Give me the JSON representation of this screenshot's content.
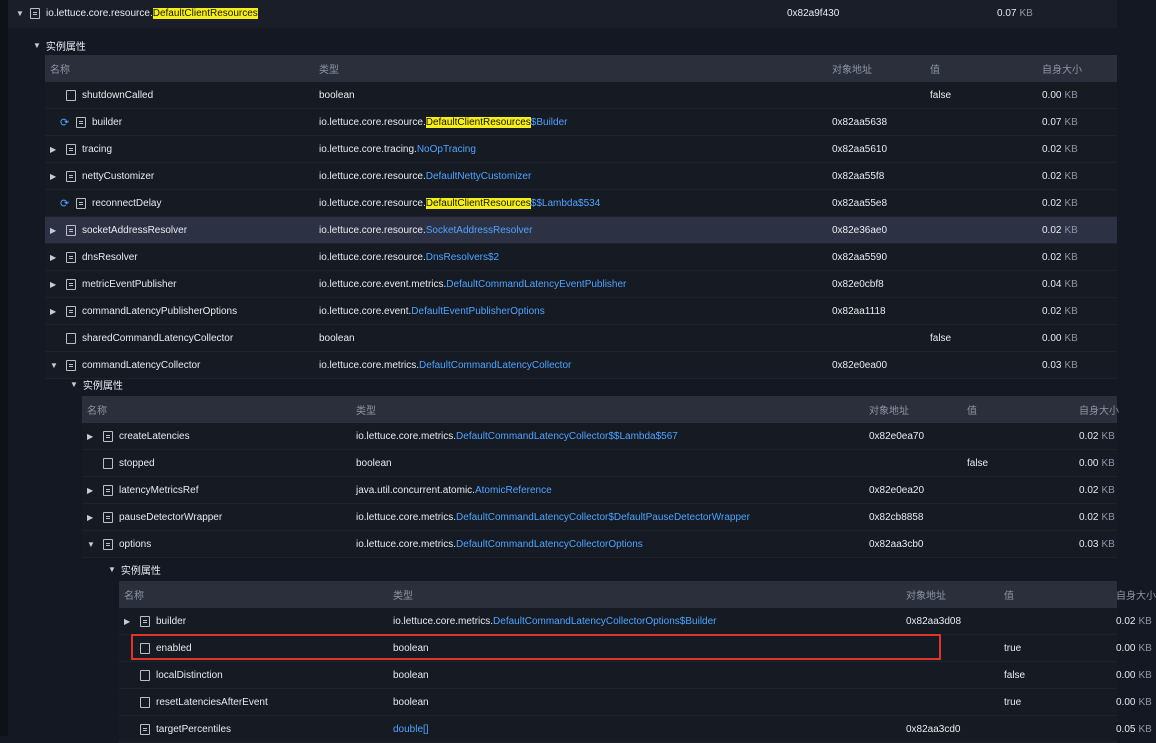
{
  "root": {
    "pkg": "io.lettuce.core.resource.",
    "cls": "DefaultClientResources",
    "addr": "0x82a9f430",
    "size": "0.07",
    "unit": "KB"
  },
  "headers": {
    "name": "名称",
    "type": "类型",
    "addr": "对象地址",
    "value": "值",
    "size": "自身大小"
  },
  "section_label": "实例属性",
  "level1": [
    {
      "name": "shutdownCalled",
      "kind": "prim",
      "exp": "",
      "pkg": "boolean",
      "cls": "",
      "hl": "",
      "suffix": "",
      "addr": "",
      "value": "false",
      "size": "0.00",
      "unit": "KB"
    },
    {
      "name": "builder",
      "kind": "cyc",
      "exp": "",
      "pkg": "io.lettuce.core.resource.",
      "cls": "",
      "hl": "DefaultClientResources",
      "suffix": "$Builder",
      "addr": "0x82aa5638",
      "value": "",
      "size": "0.07",
      "unit": "KB"
    },
    {
      "name": "tracing",
      "kind": "obj",
      "exp": "▶",
      "pkg": "io.lettuce.core.tracing.",
      "cls": "NoOpTracing",
      "hl": "",
      "suffix": "",
      "addr": "0x82aa5610",
      "value": "",
      "size": "0.02",
      "unit": "KB"
    },
    {
      "name": "nettyCustomizer",
      "kind": "obj",
      "exp": "▶",
      "pkg": "io.lettuce.core.resource.",
      "cls": "DefaultNettyCustomizer",
      "hl": "",
      "suffix": "",
      "addr": "0x82aa55f8",
      "value": "",
      "size": "0.02",
      "unit": "KB"
    },
    {
      "name": "reconnectDelay",
      "kind": "cyc",
      "exp": "",
      "pkg": "io.lettuce.core.resource.",
      "cls": "",
      "hl": "DefaultClientResources",
      "suffix": "$$Lambda$534",
      "addr": "0x82aa55e8",
      "value": "",
      "size": "0.02",
      "unit": "KB"
    },
    {
      "name": "socketAddressResolver",
      "kind": "obj",
      "exp": "▶",
      "pkg": "io.lettuce.core.resource.",
      "cls": "SocketAddressResolver",
      "hl": "",
      "suffix": "",
      "addr": "0x82e36ae0",
      "value": "",
      "size": "0.02",
      "unit": "KB",
      "selected": true
    },
    {
      "name": "dnsResolver",
      "kind": "obj",
      "exp": "▶",
      "pkg": "io.lettuce.core.resource.",
      "cls": "DnsResolvers$2",
      "hl": "",
      "suffix": "",
      "addr": "0x82aa5590",
      "value": "",
      "size": "0.02",
      "unit": "KB"
    },
    {
      "name": "metricEventPublisher",
      "kind": "obj",
      "exp": "▶",
      "pkg": "io.lettuce.core.event.metrics.",
      "cls": "DefaultCommandLatencyEventPublisher",
      "hl": "",
      "suffix": "",
      "addr": "0x82e0cbf8",
      "value": "",
      "size": "0.04",
      "unit": "KB"
    },
    {
      "name": "commandLatencyPublisherOptions",
      "kind": "obj",
      "exp": "▶",
      "pkg": "io.lettuce.core.event.",
      "cls": "DefaultEventPublisherOptions",
      "hl": "",
      "suffix": "",
      "addr": "0x82aa1118",
      "value": "",
      "size": "0.02",
      "unit": "KB"
    },
    {
      "name": "sharedCommandLatencyCollector",
      "kind": "prim",
      "exp": "",
      "pkg": "boolean",
      "cls": "",
      "hl": "",
      "suffix": "",
      "addr": "",
      "value": "false",
      "size": "0.00",
      "unit": "KB"
    },
    {
      "name": "commandLatencyCollector",
      "kind": "obj",
      "exp": "▼",
      "pkg": "io.lettuce.core.metrics.",
      "cls": "DefaultCommandLatencyCollector",
      "hl": "",
      "suffix": "",
      "addr": "0x82e0ea00",
      "value": "",
      "size": "0.03",
      "unit": "KB"
    }
  ],
  "level2": [
    {
      "name": "createLatencies",
      "kind": "obj",
      "exp": "▶",
      "pkg": "io.lettuce.core.metrics.",
      "cls": "DefaultCommandLatencyCollector$$Lambda$567",
      "hl": "",
      "suffix": "",
      "addr": "0x82e0ea70",
      "value": "",
      "size": "0.02",
      "unit": "KB"
    },
    {
      "name": "stopped",
      "kind": "prim",
      "exp": "",
      "pkg": "boolean",
      "cls": "",
      "hl": "",
      "suffix": "",
      "addr": "",
      "value": "false",
      "size": "0.00",
      "unit": "KB"
    },
    {
      "name": "latencyMetricsRef",
      "kind": "obj",
      "exp": "▶",
      "pkg": "java.util.concurrent.atomic.",
      "cls": "AtomicReference",
      "hl": "",
      "suffix": "",
      "addr": "0x82e0ea20",
      "value": "",
      "size": "0.02",
      "unit": "KB"
    },
    {
      "name": "pauseDetectorWrapper",
      "kind": "obj",
      "exp": "▶",
      "pkg": "io.lettuce.core.metrics.",
      "cls": "DefaultCommandLatencyCollector$DefaultPauseDetectorWrapper",
      "hl": "",
      "suffix": "",
      "addr": "0x82cb8858",
      "value": "",
      "size": "0.02",
      "unit": "KB"
    },
    {
      "name": "options",
      "kind": "obj",
      "exp": "▼",
      "pkg": "io.lettuce.core.metrics.",
      "cls": "DefaultCommandLatencyCollectorOptions",
      "hl": "",
      "suffix": "",
      "addr": "0x82aa3cb0",
      "value": "",
      "size": "0.03",
      "unit": "KB"
    }
  ],
  "level3": [
    {
      "name": "builder",
      "kind": "obj",
      "exp": "▶",
      "pkg": "io.lettuce.core.metrics.",
      "cls": "DefaultCommandLatencyCollectorOptions$Builder",
      "hl": "",
      "suffix": "",
      "addr": "0x82aa3d08",
      "value": "",
      "size": "0.02",
      "unit": "KB"
    },
    {
      "name": "enabled",
      "kind": "prim",
      "exp": "",
      "pkg": "boolean",
      "cls": "",
      "hl": "",
      "suffix": "",
      "addr": "",
      "value": "true",
      "size": "0.00",
      "unit": "KB",
      "boxed": true
    },
    {
      "name": "localDistinction",
      "kind": "prim",
      "exp": "",
      "pkg": "boolean",
      "cls": "",
      "hl": "",
      "suffix": "",
      "addr": "",
      "value": "false",
      "size": "0.00",
      "unit": "KB"
    },
    {
      "name": "resetLatenciesAfterEvent",
      "kind": "prim",
      "exp": "",
      "pkg": "boolean",
      "cls": "",
      "hl": "",
      "suffix": "",
      "addr": "",
      "value": "true",
      "size": "0.00",
      "unit": "KB"
    },
    {
      "name": "targetPercentiles",
      "kind": "obj",
      "exp": "",
      "pkg": "",
      "cls": "double[]",
      "hl": "",
      "suffix": "",
      "addr": "0x82aa3cd0",
      "value": "",
      "size": "0.05",
      "unit": "KB"
    }
  ],
  "colors": {
    "accent": "#4fa3ff",
    "highlight": "#f6ee1c",
    "selected_row": "#2c3244",
    "header": "#2a2f3b",
    "annotation_box": "#e0332b"
  }
}
